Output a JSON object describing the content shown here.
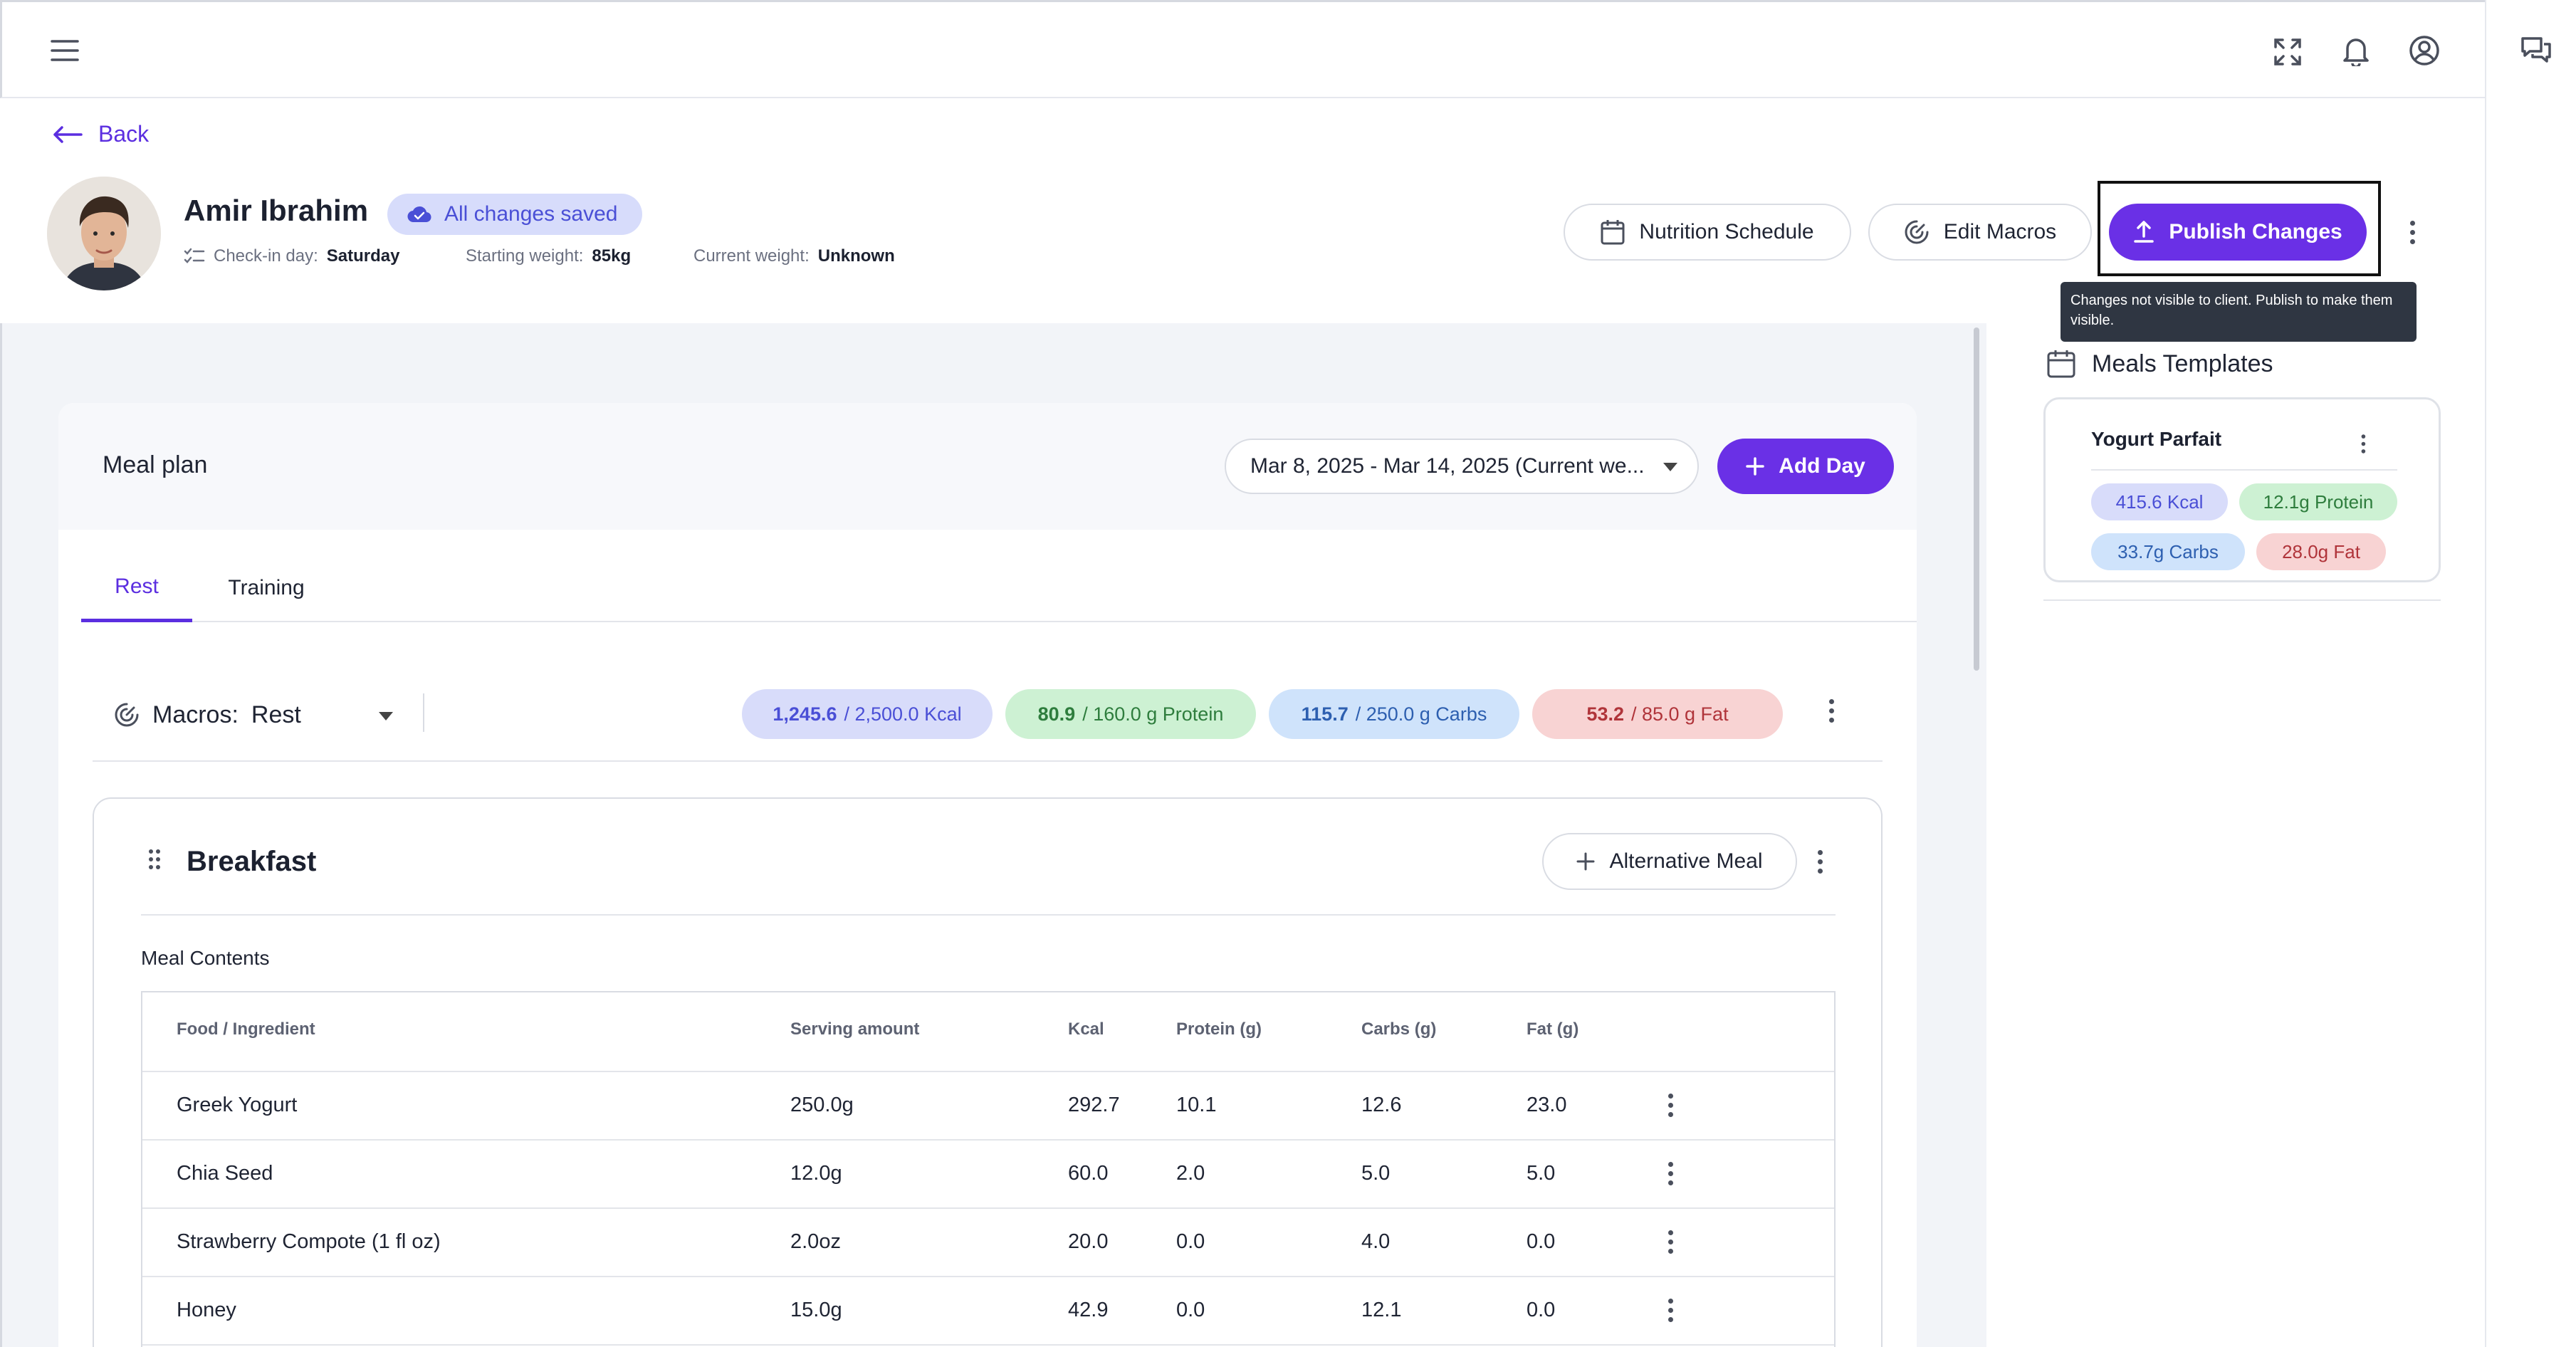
{
  "topbar": {
    "menu_icon": "hamburger-menu-icon",
    "icons": [
      "fullscreen-icon",
      "bell-icon",
      "account-icon",
      "chat-icon"
    ]
  },
  "back_label": "Back",
  "client": {
    "name": "Amir Ibrahim",
    "save_status": "All changes saved",
    "checkin_label": "Check-in day:",
    "checkin_value": "Saturday",
    "starting_label": "Starting weight:",
    "starting_value": "85kg",
    "current_label": "Current weight:",
    "current_value": "Unknown"
  },
  "actions": {
    "nutrition_schedule": "Nutrition Schedule",
    "edit_macros": "Edit Macros",
    "publish": "Publish Changes",
    "publish_tooltip": "Changes not visible to client. Publish to make them visible."
  },
  "meal_plan": {
    "title": "Meal plan",
    "week": "Mar 8, 2025 - Mar 14, 2025 (Current we...",
    "add_day": "Add Day",
    "tabs": [
      {
        "label": "Rest",
        "active": true
      },
      {
        "label": "Training",
        "active": false
      }
    ],
    "macros_label": "Macros:",
    "macros_value": "Rest",
    "pills": [
      {
        "current": "1,245.6",
        "target": "/ 2,500.0  Kcal",
        "bg": "#d8dcfa",
        "fg": "#4a4fd6"
      },
      {
        "current": "80.9",
        "target": "/ 160.0 g Protein",
        "bg": "#cdf1d3",
        "fg": "#2e7d3d"
      },
      {
        "current": "115.7",
        "target": "/ 250.0 g Carbs",
        "bg": "#cfe3fb",
        "fg": "#2d5fb0"
      },
      {
        "current": "53.2",
        "target": "/ 85.0 g Fat",
        "bg": "#f8d3d3",
        "fg": "#b0343a"
      }
    ]
  },
  "meal": {
    "title": "Breakfast",
    "alt_button": "Alternative Meal",
    "contents_label": "Meal Contents",
    "columns": [
      "Food / Ingredient",
      "Serving amount",
      "Kcal",
      "Protein (g)",
      "Carbs (g)",
      "Fat (g)"
    ],
    "rows": [
      [
        "Greek Yogurt",
        "250.0g",
        "292.7",
        "10.1",
        "12.6",
        "23.0"
      ],
      [
        "Chia Seed",
        "12.0g",
        "60.0",
        "2.0",
        "5.0",
        "5.0"
      ],
      [
        "Strawberry Compote (1 fl oz)",
        "2.0oz",
        "20.0",
        "0.0",
        "4.0",
        "0.0"
      ],
      [
        "Honey",
        "15.0g",
        "42.9",
        "0.0",
        "12.1",
        "0.0"
      ]
    ]
  },
  "templates": {
    "title": "Meals Templates",
    "items": [
      {
        "name": "Yogurt Parfait",
        "kcal": "415.6 Kcal",
        "protein": "12.1g Protein",
        "carbs": "33.7g Carbs",
        "fat": "28.0g Fat"
      }
    ]
  },
  "colors": {
    "accent": "#6a30e6",
    "kcal_bg": "#d8dcfa",
    "protein_bg": "#cdf1d3",
    "carbs_bg": "#cfe3fb",
    "fat_bg": "#f8d3d3"
  }
}
